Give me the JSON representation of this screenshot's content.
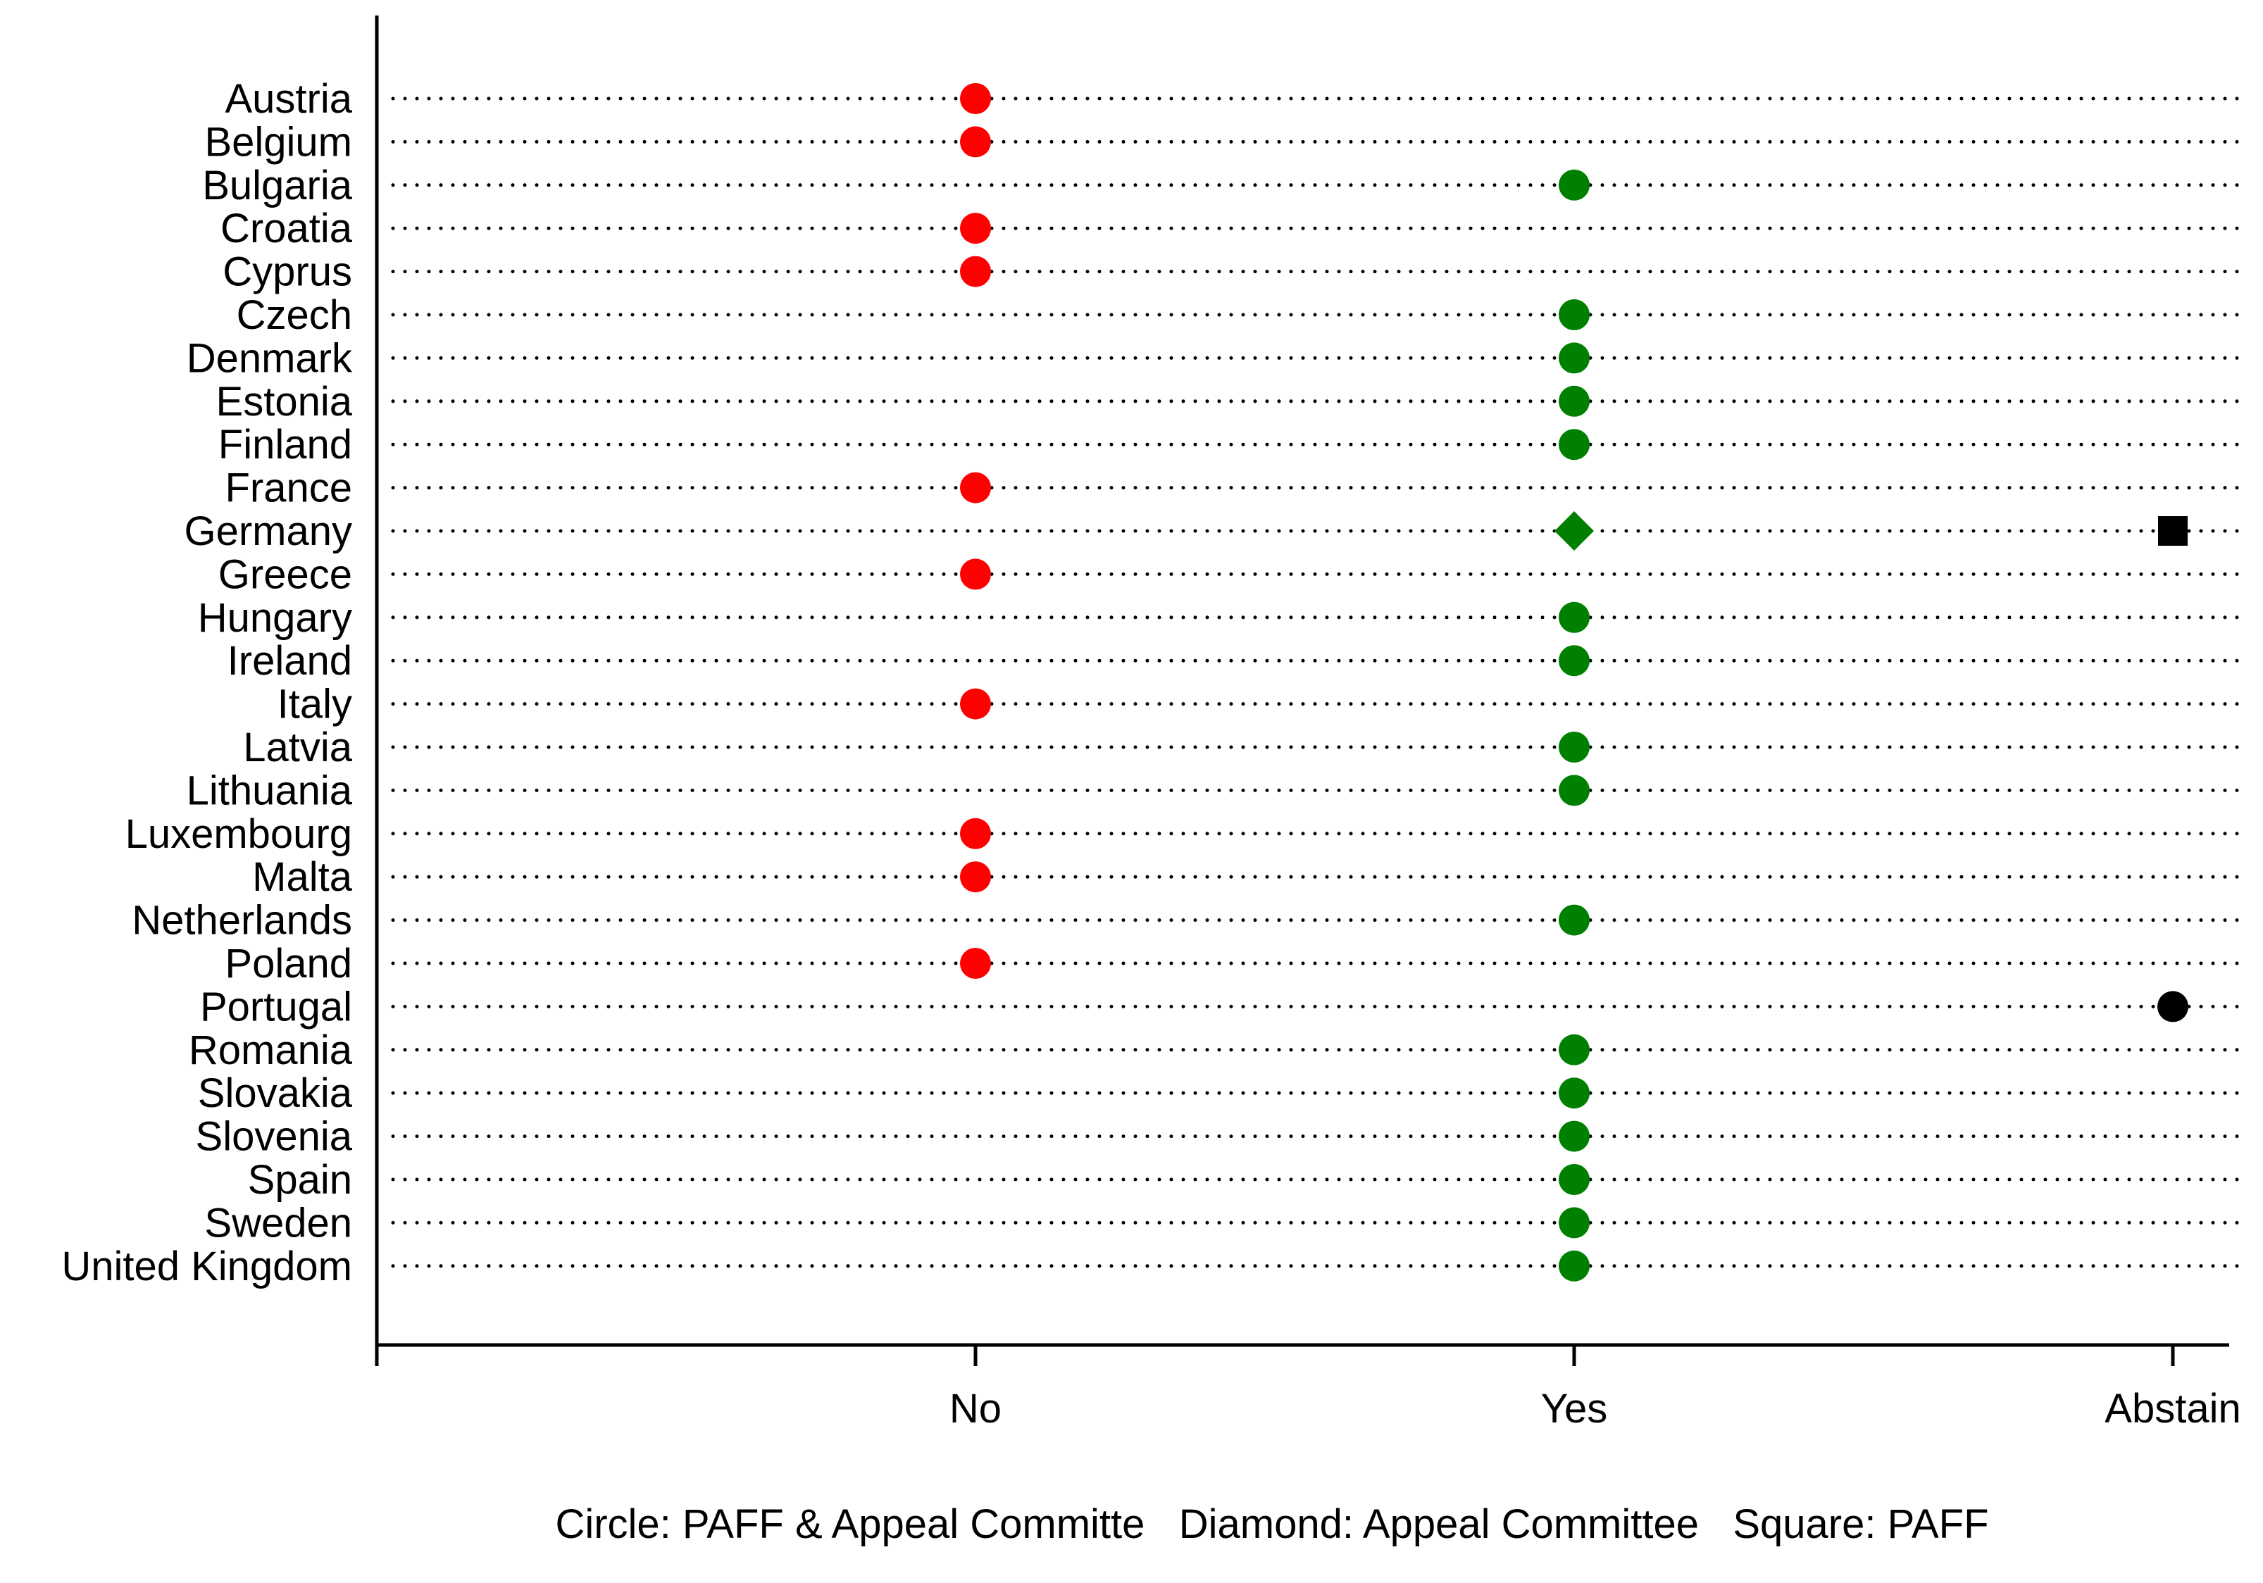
{
  "chart_data": {
    "type": "scatter",
    "title": "",
    "xlabel": "",
    "ylabel": "",
    "x_categories": [
      "No",
      "Yes",
      "Abstain"
    ],
    "countries": [
      "Austria",
      "Belgium",
      "Bulgaria",
      "Croatia",
      "Cyprus",
      "Czech",
      "Denmark",
      "Estonia",
      "Finland",
      "France",
      "Germany",
      "Greece",
      "Hungary",
      "Ireland",
      "Italy",
      "Latvia",
      "Lithuania",
      "Luxembourg",
      "Malta",
      "Netherlands",
      "Poland",
      "Portugal",
      "Romania",
      "Slovakia",
      "Slovenia",
      "Spain",
      "Sweden",
      "United Kingdom"
    ],
    "points": [
      {
        "country": "Austria",
        "vote": "No",
        "shape": "circle"
      },
      {
        "country": "Belgium",
        "vote": "No",
        "shape": "circle"
      },
      {
        "country": "Bulgaria",
        "vote": "Yes",
        "shape": "circle"
      },
      {
        "country": "Croatia",
        "vote": "No",
        "shape": "circle"
      },
      {
        "country": "Cyprus",
        "vote": "No",
        "shape": "circle"
      },
      {
        "country": "Czech",
        "vote": "Yes",
        "shape": "circle"
      },
      {
        "country": "Denmark",
        "vote": "Yes",
        "shape": "circle"
      },
      {
        "country": "Estonia",
        "vote": "Yes",
        "shape": "circle"
      },
      {
        "country": "Finland",
        "vote": "Yes",
        "shape": "circle"
      },
      {
        "country": "France",
        "vote": "No",
        "shape": "circle"
      },
      {
        "country": "Germany",
        "vote": "Yes",
        "shape": "diamond"
      },
      {
        "country": "Germany",
        "vote": "Abstain",
        "shape": "square"
      },
      {
        "country": "Greece",
        "vote": "No",
        "shape": "circle"
      },
      {
        "country": "Hungary",
        "vote": "Yes",
        "shape": "circle"
      },
      {
        "country": "Ireland",
        "vote": "Yes",
        "shape": "circle"
      },
      {
        "country": "Italy",
        "vote": "No",
        "shape": "circle"
      },
      {
        "country": "Latvia",
        "vote": "Yes",
        "shape": "circle"
      },
      {
        "country": "Lithuania",
        "vote": "Yes",
        "shape": "circle"
      },
      {
        "country": "Luxembourg",
        "vote": "No",
        "shape": "circle"
      },
      {
        "country": "Malta",
        "vote": "No",
        "shape": "circle"
      },
      {
        "country": "Netherlands",
        "vote": "Yes",
        "shape": "circle"
      },
      {
        "country": "Poland",
        "vote": "No",
        "shape": "circle"
      },
      {
        "country": "Portugal",
        "vote": "Abstain",
        "shape": "circle"
      },
      {
        "country": "Romania",
        "vote": "Yes",
        "shape": "circle"
      },
      {
        "country": "Slovakia",
        "vote": "Yes",
        "shape": "circle"
      },
      {
        "country": "Slovenia",
        "vote": "Yes",
        "shape": "circle"
      },
      {
        "country": "Spain",
        "vote": "Yes",
        "shape": "circle"
      },
      {
        "country": "Sweden",
        "vote": "Yes",
        "shape": "circle"
      },
      {
        "country": "United Kingdom",
        "vote": "Yes",
        "shape": "circle"
      }
    ],
    "vote_colors": {
      "No": "#ff0000",
      "Yes": "#008000",
      "Abstain": "#000000"
    },
    "legend_note": "Circle: PAFF & Appeal Committe   Diamond: Appeal Committee   Square: PAFF",
    "legend_position": "bottom",
    "grid": "dotted horizontal lines per country"
  }
}
